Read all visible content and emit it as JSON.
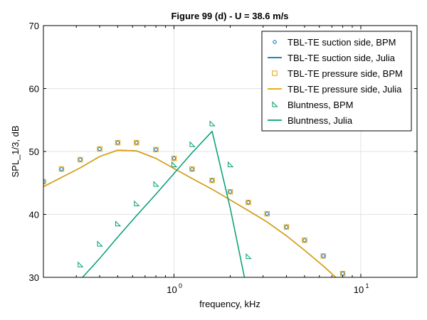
{
  "chart_data": {
    "type": "line",
    "title": "Figure 99 (d) - U = 38.6 m/s",
    "xlabel": "frequency, kHz",
    "ylabel": "SPL_1/3, dB",
    "xscale": "log",
    "xlim": [
      0.2,
      20
    ],
    "ylim": [
      30,
      70
    ],
    "x_ticks": [
      {
        "value": 1,
        "label_base": "10",
        "label_exp": "0"
      },
      {
        "value": 10,
        "label_base": "10",
        "label_exp": "1"
      }
    ],
    "y_ticks": [
      30,
      40,
      50,
      60,
      70
    ],
    "grid": true,
    "legend_position": "top-right",
    "series": [
      {
        "name": "TBL-TE suction side, BPM",
        "style": "marker-circle",
        "color": "#0072b2",
        "x": [
          0.2,
          0.25,
          0.315,
          0.4,
          0.5,
          0.63,
          0.8,
          1.0,
          1.25,
          1.6,
          2.0,
          2.5,
          3.15,
          4.0,
          5.0,
          6.3,
          8.0
        ],
        "y": [
          45.2,
          47.2,
          48.7,
          50.4,
          51.4,
          51.4,
          50.3,
          48.9,
          47.2,
          45.4,
          43.6,
          41.9,
          40.1,
          38.0,
          35.9,
          33.4,
          30.6
        ]
      },
      {
        "name": "TBL-TE suction side, Julia",
        "style": "line",
        "color": "#0072b2",
        "x": [
          0.2,
          0.315,
          0.4,
          0.5,
          0.63,
          0.8,
          1.0,
          1.25,
          1.6,
          2.0,
          2.5,
          3.15,
          4.0,
          5.0,
          6.3,
          8.0
        ],
        "y": [
          44.4,
          47.4,
          49.2,
          50.2,
          50.1,
          48.9,
          47.3,
          45.7,
          44.0,
          42.3,
          40.6,
          38.8,
          36.6,
          34.3,
          31.8,
          29.0
        ]
      },
      {
        "name": "TBL-TE pressure side, BPM",
        "style": "marker-square",
        "color": "#e69f00",
        "x": [
          0.2,
          0.25,
          0.315,
          0.4,
          0.5,
          0.63,
          0.8,
          1.0,
          1.25,
          1.6,
          2.0,
          2.5,
          3.15,
          4.0,
          5.0,
          6.3,
          8.0
        ],
        "y": [
          45.2,
          47.2,
          48.7,
          50.4,
          51.4,
          51.4,
          50.3,
          48.9,
          47.2,
          45.4,
          43.6,
          41.9,
          40.1,
          38.0,
          35.9,
          33.4,
          30.6
        ]
      },
      {
        "name": "TBL-TE pressure side, Julia",
        "style": "line",
        "color": "#e69f00",
        "x": [
          0.2,
          0.315,
          0.4,
          0.5,
          0.63,
          0.8,
          1.0,
          1.25,
          1.6,
          2.0,
          2.5,
          3.15,
          4.0,
          5.0,
          6.3,
          8.0
        ],
        "y": [
          44.4,
          47.4,
          49.2,
          50.2,
          50.1,
          48.9,
          47.3,
          45.7,
          44.0,
          42.3,
          40.6,
          38.8,
          36.6,
          34.3,
          31.8,
          29.0
        ]
      },
      {
        "name": "Bluntness, BPM",
        "style": "marker-triangle",
        "color": "#009e73",
        "x": [
          0.315,
          0.4,
          0.5,
          0.63,
          0.8,
          1.0,
          1.25,
          1.6,
          2.0,
          2.5
        ],
        "y": [
          32.0,
          35.3,
          38.5,
          41.7,
          44.8,
          47.9,
          51.1,
          54.4,
          47.9,
          33.3
        ]
      },
      {
        "name": "Bluntness, Julia",
        "style": "line",
        "color": "#009e73",
        "x": [
          0.25,
          0.315,
          0.4,
          0.5,
          0.63,
          0.8,
          1.0,
          1.25,
          1.6,
          2.0,
          2.5
        ],
        "y": [
          26.0,
          29.6,
          33.0,
          36.4,
          39.8,
          43.2,
          46.5,
          49.8,
          53.2,
          41.0,
          27.0
        ]
      }
    ]
  }
}
